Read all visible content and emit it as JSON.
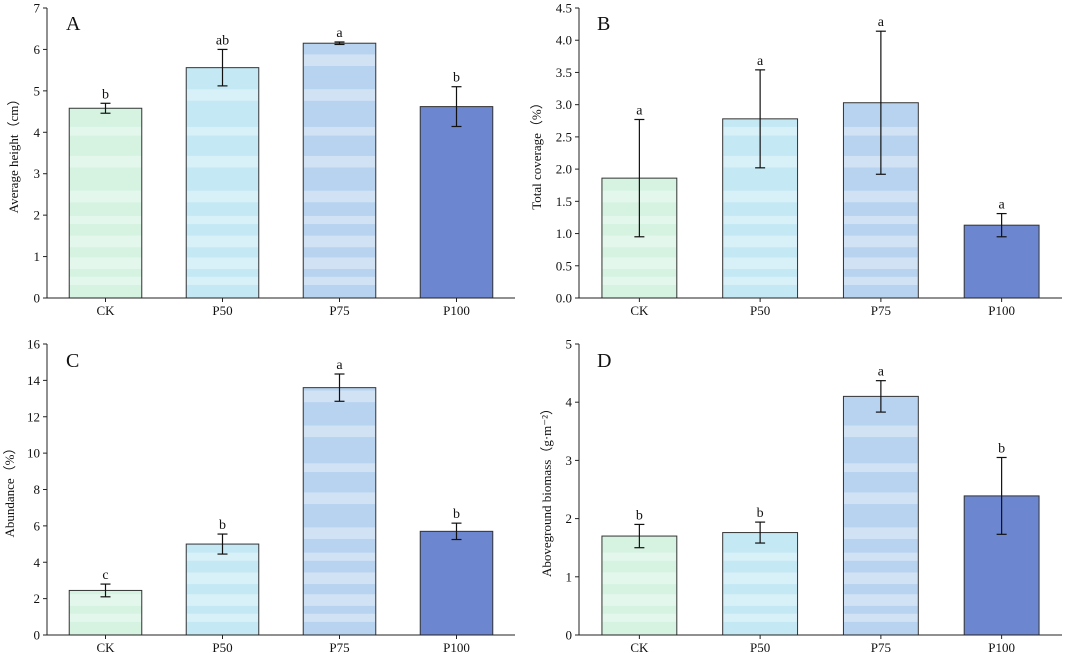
{
  "colors": {
    "CK": "#d6f3e2",
    "P50": "#c4e9f5",
    "P75": "#b8d3f0",
    "P100": "#6c86cf",
    "stripe": "#ffffff"
  },
  "chart_data": [
    {
      "id": "A",
      "type": "bar",
      "panel_label": "A",
      "categories": [
        "CK",
        "P50",
        "P75",
        "P100"
      ],
      "values": [
        4.58,
        5.56,
        6.15,
        4.62
      ],
      "errors": [
        0.12,
        0.44,
        0.03,
        0.48
      ],
      "significance": [
        "b",
        "ab",
        "a",
        "b"
      ],
      "ylabel": "Average height（cm）",
      "ylim": [
        0,
        7
      ],
      "yticks": [
        "0",
        "1",
        "2",
        "3",
        "4",
        "5",
        "6",
        "7"
      ],
      "tick_values": [
        0,
        1,
        2,
        3,
        4,
        5,
        6,
        7
      ]
    },
    {
      "id": "B",
      "type": "bar",
      "panel_label": "B",
      "categories": [
        "CK",
        "P50",
        "P75",
        "P100"
      ],
      "values": [
        1.86,
        2.78,
        3.03,
        1.13
      ],
      "errors": [
        0.91,
        0.76,
        1.11,
        0.18
      ],
      "significance": [
        "a",
        "a",
        "a",
        "a"
      ],
      "ylabel": "Total coverage（%）",
      "ylim": [
        0,
        4.5
      ],
      "yticks": [
        "0.0",
        "0.5",
        "1.0",
        "1.5",
        "2.0",
        "2.5",
        "3.0",
        "3.5",
        "4.0",
        "4.5"
      ],
      "tick_values": [
        0,
        0.5,
        1.0,
        1.5,
        2.0,
        2.5,
        3.0,
        3.5,
        4.0,
        4.5
      ]
    },
    {
      "id": "C",
      "type": "bar",
      "panel_label": "C",
      "categories": [
        "CK",
        "P50",
        "P75",
        "P100"
      ],
      "values": [
        2.45,
        5.0,
        13.6,
        5.7
      ],
      "errors": [
        0.35,
        0.55,
        0.75,
        0.45
      ],
      "significance": [
        "c",
        "b",
        "a",
        "b"
      ],
      "ylabel": "Abundance（%）",
      "ylim": [
        0,
        16
      ],
      "yticks": [
        "0",
        "2",
        "4",
        "6",
        "8",
        "10",
        "12",
        "14",
        "16"
      ],
      "tick_values": [
        0,
        2,
        4,
        6,
        8,
        10,
        12,
        14,
        16
      ]
    },
    {
      "id": "D",
      "type": "bar",
      "panel_label": "D",
      "categories": [
        "CK",
        "P50",
        "P75",
        "P100"
      ],
      "values": [
        1.7,
        1.76,
        4.1,
        2.39
      ],
      "errors": [
        0.2,
        0.18,
        0.27,
        0.66
      ],
      "significance": [
        "b",
        "b",
        "a",
        "b"
      ],
      "ylabel": "Aboveground biomass（g·m⁻²）",
      "ylim": [
        0,
        5
      ],
      "yticks": [
        "0",
        "1",
        "2",
        "3",
        "4",
        "5"
      ],
      "tick_values": [
        0,
        1,
        2,
        3,
        4,
        5
      ]
    }
  ]
}
